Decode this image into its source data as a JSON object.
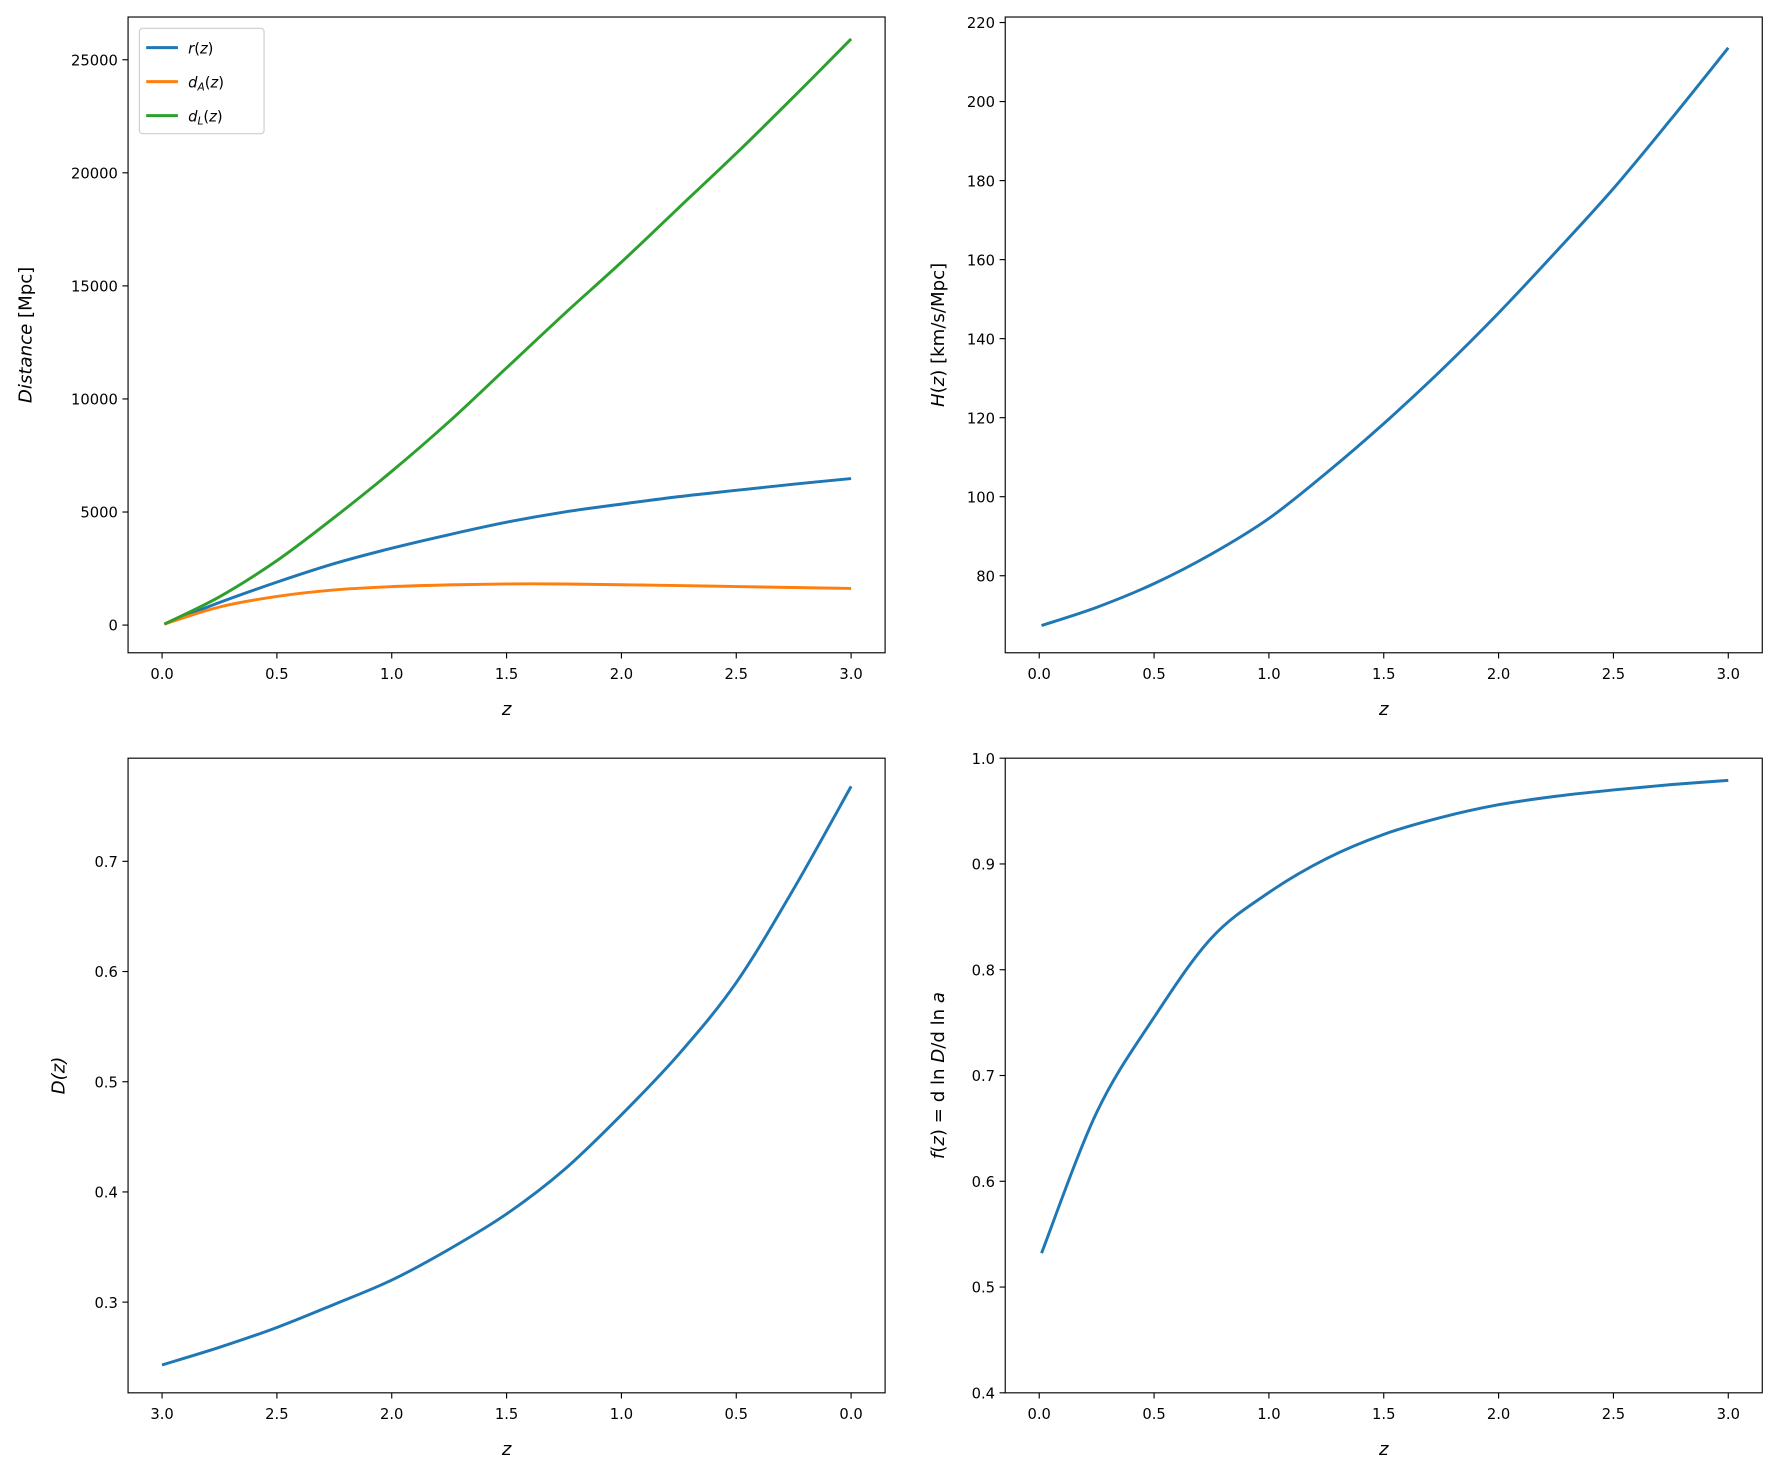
{
  "chart_data": [
    {
      "type": "line",
      "xlabel": "z",
      "ylabel": "Distance [Mpc]",
      "xlim": [
        -0.148,
        3.148
      ],
      "ylim": [
        -1225,
        26890
      ],
      "xticks": [
        "0.0",
        "0.5",
        "1.0",
        "1.5",
        "2.0",
        "2.5",
        "3.0"
      ],
      "yticks": [
        "0",
        "5000",
        "10000",
        "15000",
        "20000",
        "25000"
      ],
      "legend": "top-left",
      "x": [
        0.01,
        0.25,
        0.5,
        0.75,
        1.0,
        1.25,
        1.5,
        1.75,
        2.0,
        2.25,
        2.5,
        2.75,
        3.0
      ],
      "series": [
        {
          "name": "r(z)",
          "color": "#1f77b4",
          "values": [
            43,
            1000,
            1900,
            2720,
            3400,
            4000,
            4550,
            5000,
            5350,
            5680,
            5960,
            6230,
            6480
          ]
        },
        {
          "name": "d_A(z)",
          "color": "#ff7f0e",
          "values": [
            43,
            800,
            1267,
            1554,
            1700,
            1778,
            1820,
            1818,
            1783,
            1748,
            1703,
            1661,
            1620
          ]
        },
        {
          "name": "d_L(z)",
          "color": "#2ca02c",
          "values": [
            43,
            1250,
            2850,
            4760,
            6800,
            9000,
            11375,
            13750,
            16050,
            18460,
            20860,
            23360,
            25920
          ]
        }
      ]
    },
    {
      "type": "line",
      "xlabel": "z",
      "ylabel": "H(z) [km/s/Mpc]",
      "xlim": [
        -0.148,
        3.148
      ],
      "ylim": [
        60.5,
        221.4
      ],
      "xticks": [
        "0.0",
        "0.5",
        "1.0",
        "1.5",
        "2.0",
        "2.5",
        "3.0"
      ],
      "yticks": [
        "80",
        "100",
        "120",
        "140",
        "160",
        "180",
        "200",
        "220"
      ],
      "x": [
        0.01,
        0.25,
        0.5,
        0.75,
        1.0,
        1.25,
        1.5,
        1.75,
        2.0,
        2.25,
        2.5,
        2.75,
        3.0
      ],
      "series": [
        {
          "color": "#1f77b4",
          "values": [
            67.4,
            72,
            78,
            85.5,
            94.5,
            106,
            118.5,
            132,
            146.5,
            162,
            178,
            195.5,
            213.6
          ]
        }
      ]
    },
    {
      "type": "line",
      "xlabel": "z",
      "ylabel": "D(z)",
      "xlim": [
        3.148,
        -0.148
      ],
      "ylim": [
        0.2177,
        0.7936
      ],
      "xticks": [
        "3.0",
        "2.5",
        "2.0",
        "1.5",
        "1.0",
        "0.5",
        "0.0"
      ],
      "yticks": [
        "0.3",
        "0.4",
        "0.5",
        "0.6",
        "0.7"
      ],
      "x": [
        0.0,
        0.25,
        0.5,
        0.75,
        1.0,
        1.25,
        1.5,
        1.75,
        2.0,
        2.25,
        2.5,
        2.75,
        3.0
      ],
      "series": [
        {
          "color": "#1f77b4",
          "values": [
            0.768,
            0.675,
            0.59,
            0.525,
            0.47,
            0.42,
            0.38,
            0.348,
            0.32,
            0.298,
            0.277,
            0.259,
            0.243
          ]
        }
      ]
    },
    {
      "type": "line",
      "xlabel": "z",
      "ylabel": "f(z) = dln D/dln a",
      "xlim": [
        -0.148,
        3.148
      ],
      "ylim": [
        0.4,
        1.0
      ],
      "xticks": [
        "0.0",
        "0.5",
        "1.0",
        "1.5",
        "2.0",
        "2.5",
        "3.0"
      ],
      "yticks": [
        "0.4",
        "0.5",
        "0.6",
        "0.7",
        "0.8",
        "0.9",
        "1.0"
      ],
      "x": [
        0.01,
        0.25,
        0.5,
        0.75,
        1.0,
        1.25,
        1.5,
        1.75,
        2.0,
        2.25,
        2.5,
        2.75,
        3.0
      ],
      "series": [
        {
          "color": "#1f77b4",
          "values": [
            0.532,
            0.665,
            0.755,
            0.83,
            0.873,
            0.905,
            0.928,
            0.944,
            0.956,
            0.964,
            0.97,
            0.975,
            0.979
          ]
        }
      ]
    }
  ]
}
